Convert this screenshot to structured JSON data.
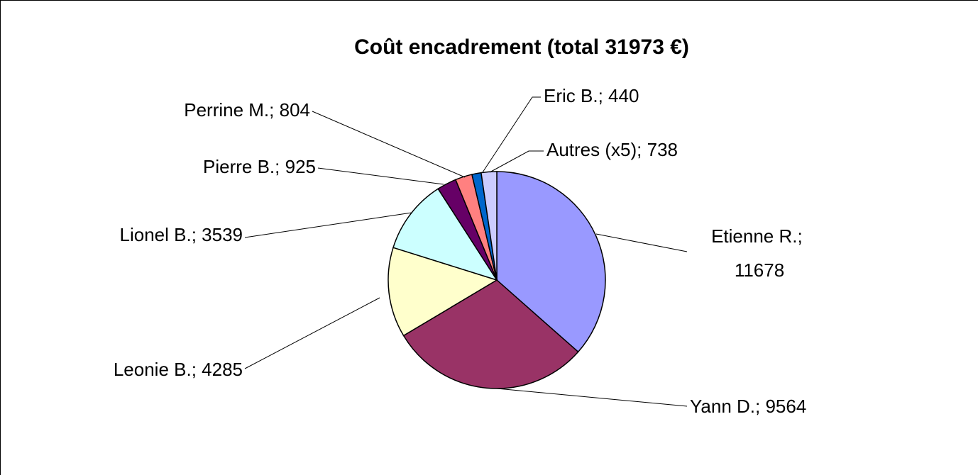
{
  "chart_data": {
    "type": "pie",
    "title": "Coût encadrement (total 31973 €)",
    "categories": [
      "Etienne R.",
      "Yann D.",
      "Leonie B.",
      "Lionel B.",
      "Pierre B.",
      "Perrine M.",
      "Eric B.",
      "Autres (x5)"
    ],
    "values": [
      11678,
      9564,
      4285,
      3539,
      925,
      804,
      440,
      738
    ],
    "colors": [
      "#9999ff",
      "#993366",
      "#ffffcc",
      "#ccffff",
      "#660066",
      "#ff8080",
      "#0066cc",
      "#ccccff"
    ],
    "label_separator": "; "
  }
}
